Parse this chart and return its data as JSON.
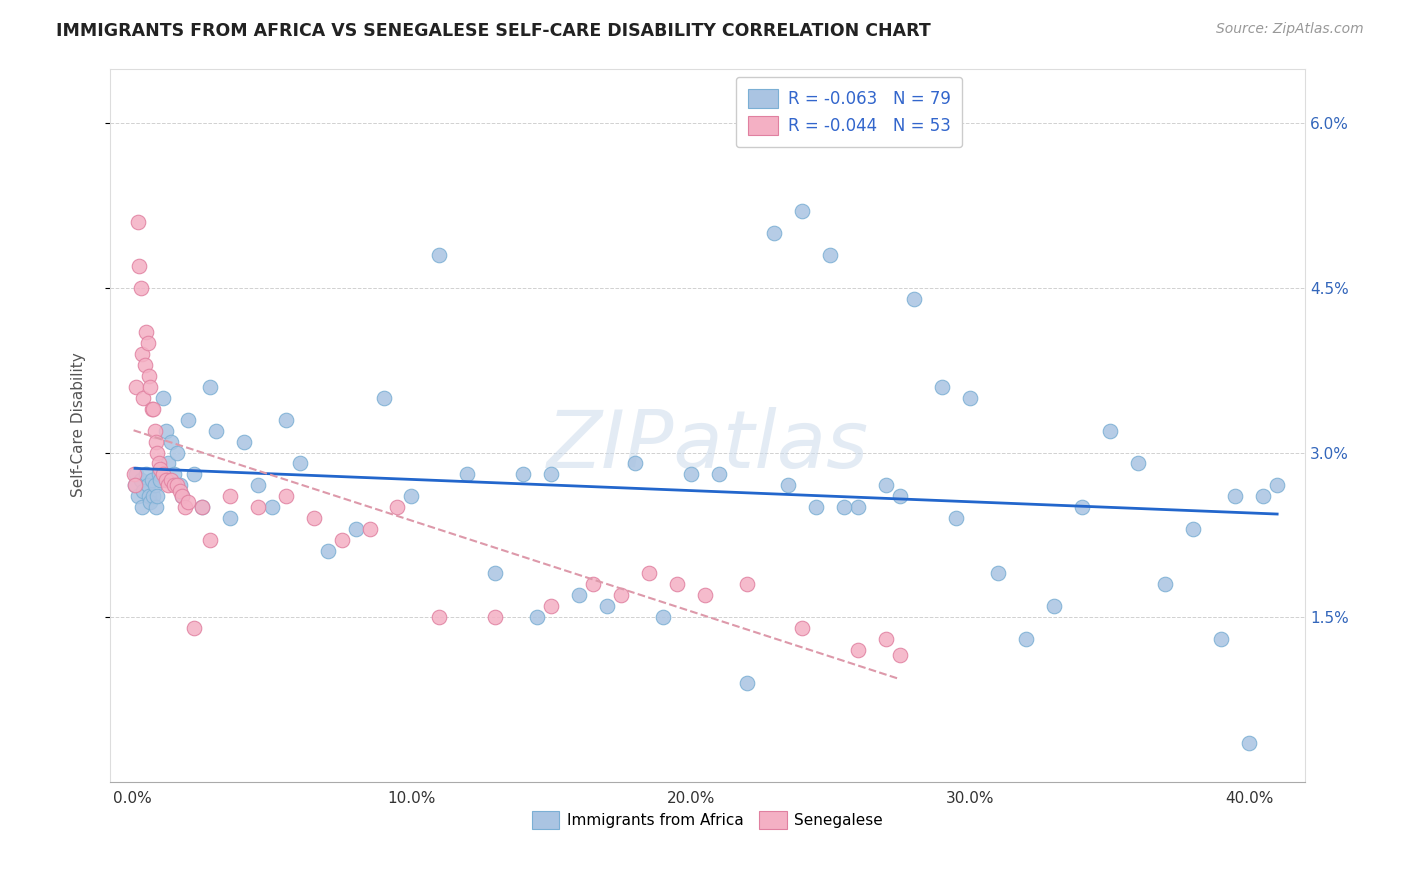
{
  "title": "IMMIGRANTS FROM AFRICA VS SENEGALESE SELF-CARE DISABILITY CORRELATION CHART",
  "source": "Source: ZipAtlas.com",
  "xlabel_vals": [
    0.0,
    10.0,
    20.0,
    30.0,
    40.0
  ],
  "ylabel_vals": [
    1.5,
    3.0,
    4.5,
    6.0
  ],
  "xlim": [
    -0.8,
    42.0
  ],
  "ylim": [
    0.0,
    6.5
  ],
  "africa_color": "#aac4e2",
  "senegal_color": "#f4b0c4",
  "africa_edge": "#7bafd4",
  "senegal_edge": "#e080a0",
  "trendline_africa_color": "#2266cc",
  "trendline_senegal_color": "#dd99aa",
  "watermark": "ZIPatlas",
  "R_africa": -0.063,
  "N_africa": 79,
  "R_senegal": -0.044,
  "N_senegal": 53,
  "africa_x": [
    0.1,
    0.15,
    0.2,
    0.3,
    0.35,
    0.4,
    0.5,
    0.55,
    0.6,
    0.65,
    0.7,
    0.75,
    0.8,
    0.85,
    0.9,
    0.95,
    1.0,
    1.1,
    1.2,
    1.3,
    1.4,
    1.5,
    1.6,
    1.7,
    1.8,
    2.0,
    2.2,
    2.5,
    2.8,
    3.0,
    3.5,
    4.0,
    4.5,
    5.0,
    5.5,
    6.0,
    7.0,
    8.0,
    9.0,
    10.0,
    11.0,
    12.0,
    13.0,
    14.0,
    14.5,
    15.0,
    16.0,
    17.0,
    18.0,
    19.0,
    20.0,
    21.0,
    22.0,
    23.0,
    24.0,
    24.5,
    25.0,
    26.0,
    27.0,
    28.0,
    29.0,
    30.0,
    31.0,
    32.0,
    33.0,
    34.0,
    35.0,
    36.0,
    37.0,
    38.0,
    39.0,
    39.5,
    40.0,
    40.5,
    41.0,
    23.5,
    25.5,
    27.5,
    29.5
  ],
  "africa_y": [
    2.7,
    2.8,
    2.6,
    2.75,
    2.5,
    2.65,
    2.8,
    2.7,
    2.6,
    2.55,
    2.75,
    2.6,
    2.7,
    2.5,
    2.6,
    2.8,
    2.75,
    3.5,
    3.2,
    2.9,
    3.1,
    2.8,
    3.0,
    2.7,
    2.6,
    3.3,
    2.8,
    2.5,
    3.6,
    3.2,
    2.4,
    3.1,
    2.7,
    2.5,
    3.3,
    2.9,
    2.1,
    2.3,
    3.5,
    2.6,
    4.8,
    2.8,
    1.9,
    2.8,
    1.5,
    2.8,
    1.7,
    1.6,
    2.9,
    1.5,
    2.8,
    2.8,
    0.9,
    5.0,
    5.2,
    2.5,
    4.8,
    2.5,
    2.7,
    4.4,
    3.6,
    3.5,
    1.9,
    1.3,
    1.6,
    2.5,
    3.2,
    2.9,
    1.8,
    2.3,
    1.3,
    2.6,
    0.35,
    2.6,
    2.7,
    2.7,
    2.5,
    2.6,
    2.4
  ],
  "senegal_x": [
    0.05,
    0.1,
    0.15,
    0.2,
    0.25,
    0.3,
    0.35,
    0.4,
    0.45,
    0.5,
    0.55,
    0.6,
    0.65,
    0.7,
    0.75,
    0.8,
    0.85,
    0.9,
    0.95,
    1.0,
    1.1,
    1.2,
    1.3,
    1.4,
    1.5,
    1.6,
    1.7,
    1.8,
    1.9,
    2.0,
    2.2,
    2.5,
    2.8,
    3.5,
    4.5,
    5.5,
    6.5,
    7.5,
    8.5,
    9.5,
    11.0,
    13.0,
    15.0,
    16.5,
    17.5,
    18.5,
    19.5,
    20.5,
    22.0,
    24.0,
    26.0,
    27.0,
    27.5
  ],
  "senegal_y": [
    2.8,
    2.7,
    3.6,
    5.1,
    4.7,
    4.5,
    3.9,
    3.5,
    3.8,
    4.1,
    4.0,
    3.7,
    3.6,
    3.4,
    3.4,
    3.2,
    3.1,
    3.0,
    2.9,
    2.85,
    2.8,
    2.75,
    2.7,
    2.75,
    2.7,
    2.7,
    2.65,
    2.6,
    2.5,
    2.55,
    1.4,
    2.5,
    2.2,
    2.6,
    2.5,
    2.6,
    2.4,
    2.2,
    2.3,
    2.5,
    1.5,
    1.5,
    1.6,
    1.8,
    1.7,
    1.9,
    1.8,
    1.7,
    1.8,
    1.4,
    1.2,
    1.3,
    1.15
  ]
}
